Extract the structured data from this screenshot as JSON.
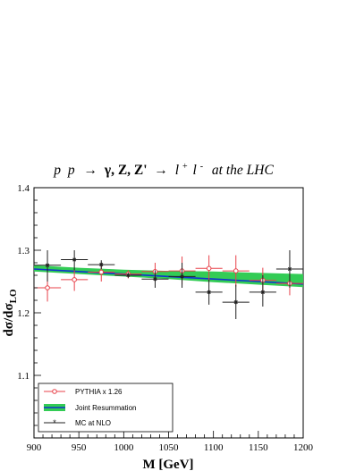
{
  "chart_data": {
    "type": "scatter",
    "title": {
      "p1": "p",
      "p2": "p",
      "arrow1": "→",
      "bosons": "γ, Z, Z'",
      "arrow2": "→",
      "l": "l",
      "plus": "+",
      "lbar": "l",
      "minus": "-",
      "suffix": "at the LHC"
    },
    "xlabel": "M [GeV]",
    "ylabel": {
      "main": "dσ/dσ",
      "sub": "LO"
    },
    "xlim": [
      900,
      1200
    ],
    "ylim": [
      1.0,
      1.4
    ],
    "x_ticks": [
      "900",
      "950",
      "1000",
      "1050",
      "1100",
      "1150",
      "1200"
    ],
    "y_ticks": [
      "1.1",
      "1.2",
      "1.3",
      "1.4"
    ],
    "legend_placement": "bottom-left",
    "series": [
      {
        "name": "PYTHIA x 1.26",
        "kind": "points-xerr-yerr",
        "color": "#e8424a",
        "marker": "open-circle",
        "points": [
          {
            "x": 915,
            "y": 1.24,
            "xlo": 900,
            "xhi": 930,
            "ylo": 1.218,
            "yhi": 1.262
          },
          {
            "x": 945,
            "y": 1.253,
            "xlo": 930,
            "xhi": 960,
            "ylo": 1.235,
            "yhi": 1.268
          },
          {
            "x": 975,
            "y": 1.265,
            "xlo": 960,
            "xhi": 990,
            "ylo": 1.25,
            "yhi": 1.28
          },
          {
            "x": 1005,
            "y": 1.262,
            "xlo": 990,
            "xhi": 1020,
            "ylo": 1.255,
            "yhi": 1.268
          },
          {
            "x": 1035,
            "y": 1.266,
            "xlo": 1020,
            "xhi": 1050,
            "ylo": 1.25,
            "yhi": 1.28
          },
          {
            "x": 1065,
            "y": 1.267,
            "xlo": 1050,
            "xhi": 1080,
            "ylo": 1.245,
            "yhi": 1.29
          },
          {
            "x": 1095,
            "y": 1.271,
            "xlo": 1080,
            "xhi": 1110,
            "ylo": 1.25,
            "yhi": 1.292
          },
          {
            "x": 1125,
            "y": 1.267,
            "xlo": 1110,
            "xhi": 1140,
            "ylo": 1.242,
            "yhi": 1.292
          },
          {
            "x": 1155,
            "y": 1.252,
            "xlo": 1140,
            "xhi": 1170,
            "ylo": 1.23,
            "yhi": 1.272
          },
          {
            "x": 1185,
            "y": 1.247,
            "xlo": 1170,
            "xhi": 1200,
            "ylo": 1.228,
            "yhi": 1.265
          }
        ]
      },
      {
        "name": "Joint Resummation",
        "kind": "band",
        "fill": "#33cc55",
        "line": "#1133cc",
        "x": [
          900,
          950,
          1000,
          1050,
          1100,
          1150,
          1200
        ],
        "center": [
          1.27,
          1.266,
          1.262,
          1.258,
          1.254,
          1.25,
          1.246
        ],
        "upper": [
          1.276,
          1.272,
          1.269,
          1.267,
          1.266,
          1.264,
          1.262
        ],
        "lower": [
          1.266,
          1.262,
          1.258,
          1.254,
          1.249,
          1.245,
          1.241
        ]
      },
      {
        "name": "MC at NLO",
        "kind": "points-xerr-yerr",
        "color": "#222222",
        "marker": "star",
        "points": [
          {
            "x": 915,
            "y": 1.276,
            "xlo": 900,
            "xhi": 930,
            "ylo": 1.25,
            "yhi": 1.3
          },
          {
            "x": 945,
            "y": 1.285,
            "xlo": 930,
            "xhi": 960,
            "ylo": 1.268,
            "yhi": 1.3
          },
          {
            "x": 975,
            "y": 1.277,
            "xlo": 960,
            "xhi": 990,
            "ylo": 1.27,
            "yhi": 1.284
          },
          {
            "x": 1005,
            "y": 1.26,
            "xlo": 990,
            "xhi": 1020,
            "ylo": 1.256,
            "yhi": 1.264
          },
          {
            "x": 1035,
            "y": 1.254,
            "xlo": 1020,
            "xhi": 1050,
            "ylo": 1.24,
            "yhi": 1.268
          },
          {
            "x": 1065,
            "y": 1.258,
            "xlo": 1050,
            "xhi": 1080,
            "ylo": 1.24,
            "yhi": 1.28
          },
          {
            "x": 1095,
            "y": 1.233,
            "xlo": 1080,
            "xhi": 1110,
            "ylo": 1.213,
            "yhi": 1.253
          },
          {
            "x": 1125,
            "y": 1.217,
            "xlo": 1110,
            "xhi": 1140,
            "ylo": 1.19,
            "yhi": 1.245
          },
          {
            "x": 1155,
            "y": 1.233,
            "xlo": 1140,
            "xhi": 1170,
            "ylo": 1.21,
            "yhi": 1.26
          },
          {
            "x": 1185,
            "y": 1.27,
            "xlo": 1170,
            "xhi": 1200,
            "ylo": 1.24,
            "yhi": 1.3
          }
        ]
      }
    ]
  }
}
